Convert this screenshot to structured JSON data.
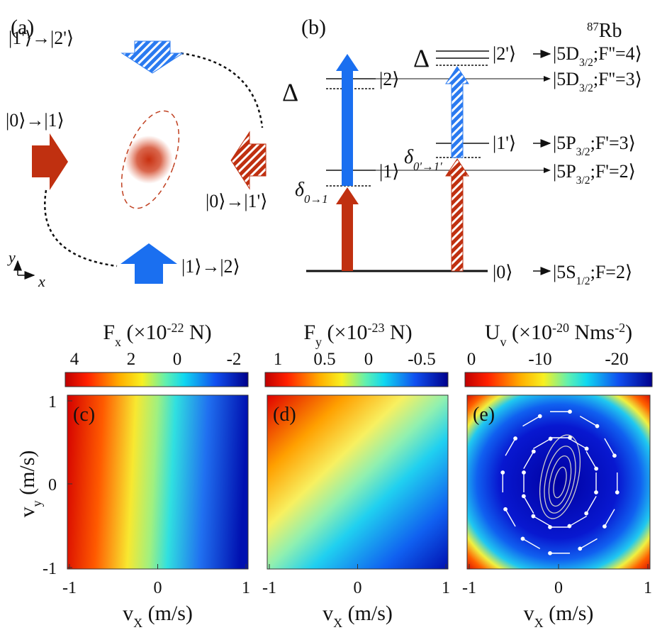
{
  "panel_a": {
    "label": "(a)",
    "transitions": [
      "|1'⟩→|2'⟩",
      "|0⟩→|1⟩",
      "|0⟩→|1'⟩",
      "|1⟩→|2⟩"
    ],
    "axis_y": "y",
    "axis_x": "x"
  },
  "panel_b": {
    "label": "(b)",
    "element": [
      {
        "sup": "87"
      },
      {
        "t": "Rb"
      }
    ],
    "delta_left": "Δ",
    "delta_right": "Δ",
    "levels": [
      "|2⟩",
      "|1⟩",
      "|2'⟩",
      "|1'⟩",
      "|0⟩"
    ],
    "detuning_left": [
      {
        "t": "δ"
      },
      {
        "sub": "0→1"
      }
    ],
    "detuning_right": [
      {
        "t": "δ"
      },
      {
        "sub": "0'→1'"
      }
    ],
    "states": [
      [
        {
          "t": "|5D"
        },
        {
          "sub": "3/2"
        },
        {
          "t": ";F''=4⟩"
        }
      ],
      [
        {
          "t": "|5D"
        },
        {
          "sub": "3/2"
        },
        {
          "t": ";F''=3⟩"
        }
      ],
      [
        {
          "t": "|5P"
        },
        {
          "sub": "3/2"
        },
        {
          "t": ";F'=3⟩"
        }
      ],
      [
        {
          "t": "|5P"
        },
        {
          "sub": "3/2"
        },
        {
          "t": ";F'=2⟩"
        }
      ],
      [
        {
          "t": "|5S"
        },
        {
          "sub": "1/2"
        },
        {
          "t": ";F=2⟩"
        }
      ]
    ]
  },
  "panel_c": {
    "label": "(c)",
    "title": [
      {
        "t": "F"
      },
      {
        "sub": "x"
      },
      {
        "t": " (×10"
      },
      {
        "sup": "-22"
      },
      {
        "t": " N)"
      }
    ],
    "colorbar_ticks": [
      "4",
      "2",
      "0",
      "-2"
    ],
    "x_ticks": [
      "-1",
      "0",
      "1"
    ],
    "x_label": [
      {
        "t": "v"
      },
      {
        "sub": "X"
      },
      {
        "t": " (m/s)"
      }
    ],
    "y_ticks": [
      "1",
      "0",
      "-1"
    ],
    "y_label": [
      {
        "t": "v"
      },
      {
        "sub": "y"
      },
      {
        "t": " (m/s)"
      }
    ]
  },
  "panel_d": {
    "label": "(d)",
    "title": [
      {
        "t": "F"
      },
      {
        "sub": "y"
      },
      {
        "t": " (×10"
      },
      {
        "sup": "-23"
      },
      {
        "t": " N)"
      }
    ],
    "colorbar_ticks": [
      "1",
      "0.5",
      "0",
      "-0.5"
    ],
    "x_ticks": [
      "-1",
      "0",
      "1"
    ],
    "x_label": [
      {
        "t": "v"
      },
      {
        "sub": "X"
      },
      {
        "t": " (m/s)"
      }
    ]
  },
  "panel_e": {
    "label": "(e)",
    "title": [
      {
        "t": "U"
      },
      {
        "sub": "v"
      },
      {
        "t": " (×10"
      },
      {
        "sup": "-20"
      },
      {
        "t": " Nms"
      },
      {
        "sup": "-2"
      },
      {
        "t": ")"
      }
    ],
    "colorbar_ticks": [
      "0",
      "-10",
      "-20"
    ],
    "x_ticks": [
      "-1",
      "0",
      "1"
    ],
    "x_label": [
      {
        "t": "v"
      },
      {
        "sub": "X"
      },
      {
        "t": " (m/s)"
      }
    ]
  }
}
